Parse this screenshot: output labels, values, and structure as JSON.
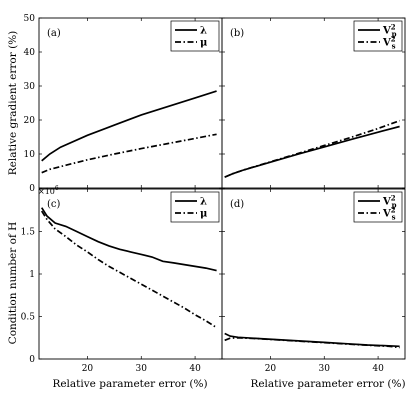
{
  "figure": {
    "top_ylabel": "Relative gradient error (%)",
    "bottom_ylabel": "Condition number of H",
    "xlabel": "Relative parameter error (%)",
    "bottom_multiplier_base": "×10",
    "bottom_multiplier_exp": "6"
  },
  "chart_data": [
    {
      "type": "line",
      "panel_label": "(a)",
      "xlim": [
        11,
        45
      ],
      "ylim": [
        0,
        50
      ],
      "yticks": [
        "0",
        "10",
        "20",
        "30",
        "40",
        "50"
      ],
      "xticks": [],
      "legend_position": "top-right",
      "series": [
        {
          "name": "λ",
          "style": "solid",
          "x": [
            11.5,
            13,
            15,
            20,
            25,
            30,
            35,
            40,
            44
          ],
          "y": [
            8,
            10,
            12,
            15.5,
            18.5,
            21.5,
            24,
            26.5,
            28.5
          ]
        },
        {
          "name": "μ",
          "style": "dashdot",
          "x": [
            11.5,
            13,
            15,
            20,
            25,
            30,
            35,
            40,
            44
          ],
          "y": [
            4.5,
            5.5,
            6.3,
            8.3,
            10,
            11.6,
            13.1,
            14.6,
            15.8
          ]
        }
      ]
    },
    {
      "type": "line",
      "panel_label": "(b)",
      "xlim": [
        11,
        45
      ],
      "ylim": [
        0,
        50
      ],
      "yticks": [],
      "xticks": [],
      "legend_position": "top-right",
      "series": [
        {
          "name": "V",
          "sub": "p",
          "sup": "2",
          "style": "solid",
          "x": [
            11.5,
            13,
            15,
            20,
            25,
            30,
            35,
            40,
            44
          ],
          "y": [
            3.2,
            4.2,
            5.3,
            7.6,
            9.9,
            12.1,
            14.3,
            16.4,
            18.1
          ]
        },
        {
          "name": "V",
          "sub": "s",
          "sup": "2",
          "style": "dashdot",
          "x": [
            11.5,
            13,
            15,
            20,
            25,
            30,
            35,
            40,
            44
          ],
          "y": [
            3.2,
            4.2,
            5.3,
            7.7,
            10.1,
            12.5,
            14.9,
            17.5,
            19.8
          ]
        }
      ]
    },
    {
      "type": "line",
      "panel_label": "(c)",
      "xlim": [
        11,
        45
      ],
      "ylim": [
        0,
        2
      ],
      "yticks": [
        "0",
        "0.5",
        "1",
        "1.5"
      ],
      "xticks": [
        "20",
        "30",
        "40"
      ],
      "legend_position": "top-right",
      "series": [
        {
          "name": "λ",
          "style": "solid",
          "x": [
            11.5,
            12.5,
            14,
            16,
            18,
            20,
            22,
            24,
            26,
            28,
            30,
            32,
            34,
            36,
            38,
            40,
            42,
            44
          ],
          "y": [
            1.78,
            1.68,
            1.6,
            1.56,
            1.5,
            1.44,
            1.38,
            1.33,
            1.29,
            1.26,
            1.23,
            1.2,
            1.15,
            1.13,
            1.11,
            1.09,
            1.07,
            1.04
          ]
        },
        {
          "name": "μ",
          "style": "dashdot",
          "x": [
            11.5,
            12.5,
            14,
            16,
            18,
            20,
            22,
            24,
            26,
            28,
            30,
            32,
            34,
            36,
            38,
            40,
            42,
            44
          ],
          "y": [
            1.74,
            1.64,
            1.53,
            1.44,
            1.34,
            1.26,
            1.17,
            1.09,
            1.02,
            0.95,
            0.88,
            0.81,
            0.74,
            0.67,
            0.6,
            0.52,
            0.45,
            0.37
          ]
        }
      ]
    },
    {
      "type": "line",
      "panel_label": "(d)",
      "xlim": [
        11,
        45
      ],
      "ylim": [
        0,
        2
      ],
      "yticks": [],
      "xticks": [
        "20",
        "30",
        "40"
      ],
      "legend_position": "top-right",
      "series": [
        {
          "name": "V",
          "sub": "p",
          "sup": "2",
          "style": "solid",
          "x": [
            11.5,
            12.5,
            14,
            18,
            22,
            26,
            30,
            34,
            38,
            42,
            44
          ],
          "y": [
            0.3,
            0.27,
            0.255,
            0.24,
            0.225,
            0.21,
            0.195,
            0.18,
            0.165,
            0.155,
            0.15
          ]
        },
        {
          "name": "V",
          "sub": "s",
          "sup": "2",
          "style": "dashdot",
          "x": [
            11.5,
            12.5,
            14,
            18,
            22,
            26,
            30,
            34,
            38,
            42,
            44
          ],
          "y": [
            0.22,
            0.245,
            0.25,
            0.238,
            0.222,
            0.207,
            0.192,
            0.177,
            0.162,
            0.15,
            0.135
          ]
        }
      ]
    }
  ]
}
